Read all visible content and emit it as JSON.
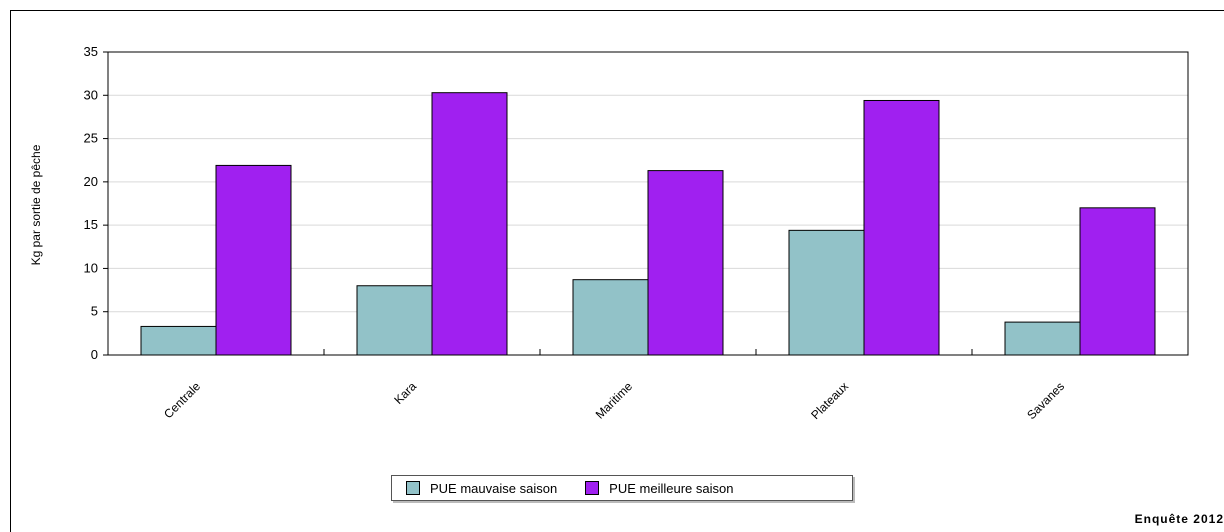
{
  "chart_data": {
    "type": "bar",
    "title": "",
    "xlabel": "",
    "ylabel": "Kg par sortie de pêche",
    "categories": [
      "Centrale",
      "Kara",
      "Maritime",
      "Plateaux",
      "Savanes"
    ],
    "series": [
      {
        "name": "PUE mauvaise saison",
        "color": "#92c2c8",
        "values": [
          3.3,
          8.0,
          8.7,
          14.4,
          3.8
        ]
      },
      {
        "name": "PUE meilleure saison",
        "color": "#a020f0",
        "values": [
          21.9,
          30.3,
          21.3,
          29.4,
          17.0
        ]
      }
    ],
    "ylim": [
      0,
      35
    ],
    "yticks": [
      0,
      5,
      10,
      15,
      20,
      25,
      30,
      35
    ],
    "grid": true,
    "legend_position": "bottom-center"
  },
  "footer": {
    "text": "Enquête 2012"
  }
}
